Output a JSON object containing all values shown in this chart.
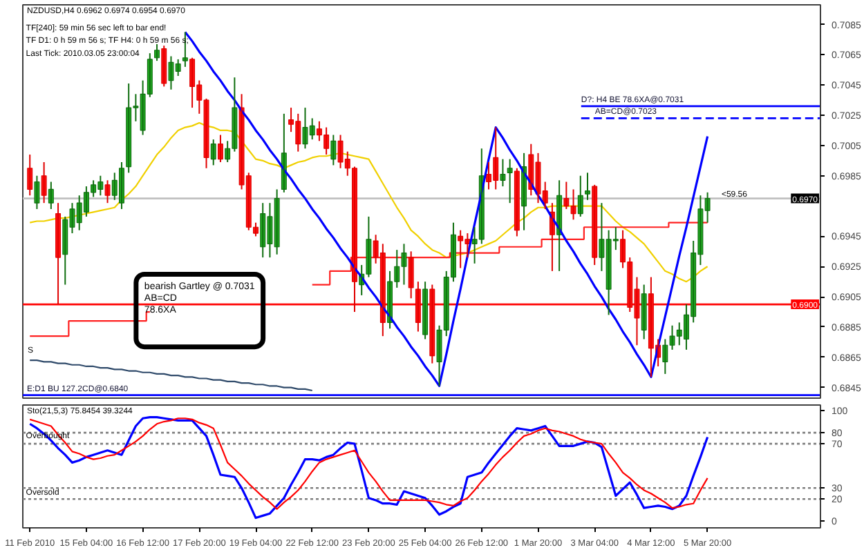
{
  "chart_data": [
    {
      "type": "candlestick",
      "title": "NZDUSD,H4  0.6962 0.6974 0.6954 0.6970",
      "annotations": [
        "TF[240]: 59 min 56 sec left to bar end!",
        "TF D1: 0 h 59 m 56 s;   TF H4: 0 h 59 m 56 s;",
        "Last Tick: 2010.03.05 23:00:04",
        "bearish Gartley @ 0.7031\nAB=CD\n78.6XA",
        "S",
        "<59.56"
      ],
      "categories": [
        null,
        null,
        null,
        null,
        null,
        null,
        null,
        null,
        null,
        null,
        null,
        null,
        null,
        null,
        null,
        null,
        null,
        null,
        null,
        null,
        null,
        null,
        null,
        null,
        null,
        null,
        null,
        null,
        null,
        null,
        null,
        null,
        null,
        null,
        null,
        null,
        null,
        null,
        null,
        null,
        null,
        null,
        null,
        null,
        null,
        null,
        null,
        null,
        null,
        null,
        null,
        null,
        null,
        null,
        null,
        null,
        null,
        null,
        null,
        null,
        null,
        null,
        null,
        null,
        null,
        null,
        null,
        null,
        null,
        null,
        null,
        null,
        null,
        null,
        null,
        null,
        null,
        null,
        null,
        null,
        null,
        null,
        null,
        null,
        null,
        null,
        null,
        null,
        null,
        null,
        null,
        null,
        null,
        null,
        null,
        null,
        null
      ],
      "ohlc": [
        [
          0.699,
          0.6999,
          0.6972,
          0.6976
        ],
        [
          0.6967,
          0.6985,
          0.6963,
          0.6981
        ],
        [
          0.6985,
          0.6994,
          0.6967,
          0.6972
        ],
        [
          0.6967,
          0.6981,
          0.6963,
          0.6976
        ],
        [
          0.696,
          0.6967,
          0.69,
          0.6931
        ],
        [
          0.6933,
          0.6958,
          0.6913,
          0.6956
        ],
        [
          0.6951,
          0.6967,
          0.6947,
          0.6963
        ],
        [
          0.6954,
          0.6972,
          0.6949,
          0.6967
        ],
        [
          0.6961,
          0.6978,
          0.6958,
          0.6974
        ],
        [
          0.6974,
          0.6982,
          0.6971,
          0.6979
        ],
        [
          0.6976,
          0.6985,
          0.6972,
          0.6981
        ],
        [
          0.6979,
          0.6982,
          0.6967,
          0.6972
        ],
        [
          0.6972,
          0.6987,
          0.6969,
          0.6982
        ],
        [
          0.6967,
          0.6994,
          0.6963,
          0.699
        ],
        [
          0.6991,
          0.7046,
          0.6987,
          0.703
        ],
        [
          0.703,
          0.7039,
          0.7021,
          0.7031
        ],
        [
          0.7015,
          0.7048,
          0.7012,
          0.7039
        ],
        [
          0.7039,
          0.7066,
          0.7037,
          0.7062
        ],
        [
          0.7063,
          0.7072,
          0.7061,
          0.7068
        ],
        [
          0.7069,
          0.7071,
          0.7044,
          0.7046
        ],
        [
          0.7048,
          0.7064,
          0.7042,
          0.706
        ],
        [
          0.7054,
          0.7062,
          0.7051,
          0.7059
        ],
        [
          0.7061,
          0.708,
          0.7057,
          0.7063
        ],
        [
          0.7062,
          0.7063,
          0.703,
          0.7044
        ],
        [
          0.7045,
          0.7048,
          0.7026,
          0.7035
        ],
        [
          0.7035,
          0.7036,
          0.699,
          0.6997
        ],
        [
          0.6996,
          0.7009,
          0.6992,
          0.7006
        ],
        [
          0.7006,
          0.7012,
          0.6994,
          0.6996
        ],
        [
          0.6996,
          0.7008,
          0.6994,
          0.7003
        ],
        [
          0.7003,
          0.705,
          0.7001,
          0.703
        ],
        [
          0.703,
          0.7039,
          0.6976,
          0.6979
        ],
        [
          0.6985,
          0.6987,
          0.6949,
          0.6951
        ],
        [
          0.6951,
          0.6954,
          0.6945,
          0.6947
        ],
        [
          0.6938,
          0.6967,
          0.6931,
          0.696
        ],
        [
          0.694,
          0.6967,
          0.6931,
          0.6958
        ],
        [
          0.6938,
          0.6976,
          0.6933,
          0.697
        ],
        [
          0.6976,
          0.7026,
          0.6974,
          0.7
        ],
        [
          0.7022,
          0.703,
          0.7014,
          0.7019
        ],
        [
          0.7021,
          0.7026,
          0.7001,
          0.7006
        ],
        [
          0.7006,
          0.703,
          0.7003,
          0.7017
        ],
        [
          0.7012,
          0.7023,
          0.7009,
          0.7018
        ],
        [
          0.7016,
          0.7021,
          0.7008,
          0.7012
        ],
        [
          0.7012,
          0.7017,
          0.6999,
          0.7003
        ],
        [
          0.6996,
          0.7012,
          0.6992,
          0.7008
        ],
        [
          0.7008,
          0.7012,
          0.699,
          0.6994
        ],
        [
          0.6996,
          0.7001,
          0.6985,
          0.699
        ],
        [
          0.699,
          0.6991,
          0.6895,
          0.6915
        ],
        [
          0.6913,
          0.6926,
          0.6906,
          0.692
        ],
        [
          0.692,
          0.6958,
          0.6918,
          0.6943
        ],
        [
          0.6942,
          0.6946,
          0.6927,
          0.6931
        ],
        [
          0.6934,
          0.694,
          0.6879,
          0.6888
        ],
        [
          0.6888,
          0.6922,
          0.6884,
          0.6915
        ],
        [
          0.6915,
          0.6936,
          0.6911,
          0.6925
        ],
        [
          0.6925,
          0.694,
          0.6913,
          0.6934
        ],
        [
          0.6931,
          0.6935,
          0.6904,
          0.6911
        ],
        [
          0.691,
          0.6915,
          0.6882,
          0.6888
        ],
        [
          0.688,
          0.6915,
          0.6877,
          0.691
        ],
        [
          0.691,
          0.6913,
          0.6861,
          0.6866
        ],
        [
          0.6862,
          0.6886,
          0.6846,
          0.6883
        ],
        [
          0.6883,
          0.6922,
          0.6879,
          0.6918
        ],
        [
          0.6918,
          0.6954,
          0.6915,
          0.6946
        ],
        [
          0.6945,
          0.6949,
          0.6924,
          0.6942
        ],
        [
          0.6943,
          0.6947,
          0.6931,
          0.694
        ],
        [
          0.694,
          0.6951,
          0.6927,
          0.6943
        ],
        [
          0.6943,
          0.7003,
          0.694,
          0.6985
        ],
        [
          0.6986,
          0.6994,
          0.6976,
          0.6981
        ],
        [
          0.6997,
          0.7017,
          0.6976,
          0.6982
        ],
        [
          0.6982,
          0.6996,
          0.6978,
          0.6986
        ],
        [
          0.6987,
          0.6996,
          0.6967,
          0.699
        ],
        [
          0.6988,
          0.699,
          0.6945,
          0.6949
        ],
        [
          0.6965,
          0.7,
          0.6949,
          0.6991
        ],
        [
          0.6999,
          0.7006,
          0.6972,
          0.6976
        ],
        [
          0.6994,
          0.7,
          0.6967,
          0.6973
        ],
        [
          0.6975,
          0.6981,
          0.6963,
          0.6967
        ],
        [
          0.6961,
          0.6967,
          0.6922,
          0.6946
        ],
        [
          0.6946,
          0.6982,
          0.6922,
          0.6972
        ],
        [
          0.697,
          0.6981,
          0.6963,
          0.6965
        ],
        [
          0.6965,
          0.6976,
          0.6956,
          0.696
        ],
        [
          0.696,
          0.6985,
          0.6958,
          0.6972
        ],
        [
          0.6973,
          0.6987,
          0.6969,
          0.6975
        ],
        [
          0.6978,
          0.6979,
          0.6926,
          0.6931
        ],
        [
          0.6931,
          0.6967,
          0.6922,
          0.6943
        ],
        [
          0.691,
          0.6949,
          0.6893,
          0.6943
        ],
        [
          0.6942,
          0.6951,
          0.6936,
          0.6943
        ],
        [
          0.6943,
          0.6949,
          0.6924,
          0.6928
        ],
        [
          0.6928,
          0.6931,
          0.6895,
          0.6898
        ],
        [
          0.691,
          0.6918,
          0.6873,
          0.6891
        ],
        [
          0.6883,
          0.6913,
          0.6877,
          0.6907
        ],
        [
          0.6907,
          0.6918,
          0.6852,
          0.6871
        ],
        [
          0.6873,
          0.6877,
          0.6859,
          0.6865
        ],
        [
          0.6862,
          0.6877,
          0.6854,
          0.6873
        ],
        [
          0.6873,
          0.6886,
          0.687,
          0.6879
        ],
        [
          0.6879,
          0.6888,
          0.6873,
          0.6883
        ],
        [
          0.6877,
          0.69,
          0.687,
          0.6893
        ],
        [
          0.6892,
          0.6942,
          0.6888,
          0.6934
        ],
        [
          0.6933,
          0.6972,
          0.6926,
          0.6963
        ],
        [
          0.6962,
          0.6974,
          0.6954,
          0.697
        ]
      ],
      "series": [
        {
          "type": "line",
          "color": "#f0d000",
          "values": [
            0.6954,
            0.6955,
            0.6955,
            0.6956,
            0.6957,
            0.6957,
            0.6958,
            0.6959,
            0.696,
            0.6961,
            0.6962,
            0.6963,
            0.6964,
            0.6969,
            0.6973,
            0.6978,
            0.6985,
            0.6992,
            0.6999,
            0.7004,
            0.701,
            0.7015,
            0.7017,
            0.7018,
            0.702,
            0.7018,
            0.7017,
            0.7015,
            0.7015,
            0.7014,
            0.7008,
            0.7002,
            0.6996,
            0.6995,
            0.6993,
            0.6992,
            0.699,
            0.6992,
            0.6994,
            0.6995,
            0.6997,
            0.6998,
            0.6998,
            0.6999,
            0.7,
            0.6999,
            0.6998,
            0.6997,
            0.6996,
            0.6988,
            0.698,
            0.6972,
            0.6964,
            0.6957,
            0.6949,
            0.6945,
            0.694,
            0.6936,
            0.6934,
            0.6931,
            0.6932,
            0.6933,
            0.6934,
            0.6936,
            0.6938,
            0.694,
            0.6942,
            0.6946,
            0.695,
            0.6954,
            0.6957,
            0.6961,
            0.6964,
            0.6964,
            0.6965,
            0.6965,
            0.6965,
            0.6965,
            0.6965,
            0.6965,
            0.6965,
            0.6965,
            0.696,
            0.6955,
            0.6951,
            0.6948,
            0.6944,
            0.694,
            0.6934,
            0.6928,
            0.6922,
            0.692,
            0.6917,
            0.6915,
            0.6918,
            0.6922,
            0.6925
          ]
        },
        {
          "type": "step",
          "color": "#ff2020",
          "values": [
            0.6879,
            0.6879,
            0.6879,
            0.6879,
            0.6879,
            0.6879,
            0.6889,
            0.6889,
            0.6889,
            0.6889,
            0.6889,
            0.6889,
            0.6889,
            0.6889,
            0.6889,
            0.6889,
            0.6889,
            0.6895,
            null,
            null,
            null,
            null,
            null,
            null,
            null,
            null,
            null,
            null,
            null,
            null,
            null,
            null,
            null,
            null,
            null,
            null,
            null,
            null,
            null,
            null,
            0.6913,
            0.6913,
            0.6913,
            0.6922,
            0.6922,
            0.6922,
            0.6931,
            0.6931,
            0.6931,
            0.6931,
            0.6931,
            0.6931,
            0.6931,
            0.6931,
            0.6931,
            0.6931,
            0.6931,
            0.6931,
            0.6931,
            0.6931,
            0.6934,
            0.6934,
            0.6934,
            0.6934,
            0.6934,
            0.6934,
            0.6934,
            0.6938,
            0.6938,
            0.6938,
            0.6938,
            0.6938,
            0.6938,
            0.6943,
            0.6943,
            0.6943,
            0.6943,
            0.6943,
            0.6943,
            0.6951,
            0.6951,
            0.6951,
            0.6951,
            0.6951,
            0.6951,
            0.6951,
            0.6951,
            0.6951,
            0.6951,
            0.6951,
            0.6951,
            0.6954,
            0.6954,
            0.6954,
            0.6954,
            0.6954,
            0.6954
          ]
        },
        {
          "type": "line",
          "color": "#2f4a6a",
          "values": [
            0.6863,
            0.6863,
            0.6862,
            0.6862,
            0.6861,
            0.6861,
            0.686,
            0.686,
            0.6859,
            0.6859,
            0.6858,
            0.6858,
            0.6857,
            0.6857,
            0.6856,
            0.6856,
            0.6855,
            0.6855,
            0.6854,
            0.6854,
            0.6853,
            0.6853,
            0.6852,
            0.6852,
            0.6851,
            0.6851,
            0.685,
            0.685,
            0.6849,
            0.6849,
            0.6848,
            0.6848,
            0.6847,
            0.6847,
            0.6846,
            0.6846,
            0.6845,
            0.6845,
            0.6844,
            0.6844,
            0.6843,
            null,
            null,
            null,
            null,
            null,
            null,
            null,
            null,
            null,
            null,
            null,
            null,
            null,
            null,
            null,
            null,
            null,
            null,
            null,
            null,
            null,
            null,
            null,
            null,
            null,
            null,
            null,
            null,
            null,
            null,
            null,
            null,
            null,
            null,
            null,
            null,
            null,
            null,
            null,
            null,
            null,
            null,
            null,
            null,
            null,
            null,
            null,
            null,
            null,
            null,
            null,
            null,
            null,
            null,
            null,
            null
          ]
        },
        {
          "type": "line",
          "color": "#0000ff",
          "values": [
            null,
            null,
            null,
            null,
            null,
            null,
            null,
            null,
            null,
            null,
            null,
            null,
            null,
            null,
            null,
            null,
            null,
            null,
            null,
            null,
            null,
            null,
            0.708,
            0.7074,
            0.7067,
            0.7061,
            0.7054,
            0.7048,
            0.7041,
            0.7035,
            0.7028,
            0.7022,
            0.7015,
            0.7009,
            0.7002,
            0.6996,
            0.6989,
            0.6983,
            0.6976,
            0.697,
            0.6963,
            0.6957,
            0.695,
            0.6944,
            0.6937,
            0.6931,
            0.6924,
            0.6918,
            0.6911,
            0.6905,
            0.6898,
            0.6892,
            0.6885,
            0.6879,
            0.6872,
            0.6866,
            0.6859,
            0.6853,
            0.6846,
            0.6867,
            0.6889,
            0.691,
            0.6932,
            0.6953,
            0.6974,
            0.6996,
            0.7017,
            0.701,
            0.7002,
            0.6995,
            0.6987,
            0.698,
            0.6972,
            0.6965,
            0.6957,
            0.695,
            0.6942,
            0.6935,
            0.6927,
            0.692,
            0.6912,
            0.6905,
            0.6897,
            0.689,
            0.6882,
            0.6875,
            0.6867,
            0.686,
            0.6852,
            0.6872,
            0.6892,
            0.6912,
            0.6932,
            0.6951,
            0.6971,
            0.6991,
            0.7011
          ]
        }
      ],
      "ref_lines": [
        {
          "axis": "y",
          "value": 0.7031,
          "label": "D?: H4 BE 78.6XA@0.7031",
          "color": "#0000ff",
          "line_style": "solid"
        },
        {
          "axis": "y",
          "value": 0.7023,
          "label": "AB=CD@0.7023",
          "color": "#0000ff",
          "line_style": "dashed"
        },
        {
          "axis": "y",
          "value": 0.697,
          "label": "0.6970",
          "color": "#c0c0c0",
          "line_style": "solid"
        },
        {
          "axis": "y",
          "value": 0.69,
          "label": "0.6900",
          "color": "#ff0000",
          "line_style": "solid"
        },
        {
          "axis": "y",
          "value": 0.684,
          "label": "E:D1 BU 127.2CD@0.6840",
          "color": "#0000ff",
          "line_style": "solid"
        }
      ],
      "ylim": [
        0.6838,
        0.7098
      ],
      "yticks": [
        0.7085,
        0.7065,
        0.7045,
        0.7025,
        0.7005,
        0.6985,
        0.6945,
        0.6925,
        0.6905,
        0.6885,
        0.6865,
        0.6845
      ],
      "tick_labels": "y"
    },
    {
      "type": "line",
      "title": "Sto(21,5,3) 75.8454 39.3244",
      "annotations": [
        "Overbought",
        "Oversold"
      ],
      "categories": [
        "11 Feb 2010",
        null,
        null,
        null,
        null,
        null,
        null,
        null,
        "15 Feb 04:00",
        null,
        null,
        null,
        null,
        null,
        null,
        null,
        "16 Feb 12:00",
        null,
        null,
        null,
        null,
        null,
        null,
        null,
        "17 Feb 20:00",
        null,
        null,
        null,
        null,
        null,
        null,
        null,
        "19 Feb 04:00",
        null,
        null,
        null,
        null,
        null,
        null,
        null,
        "22 Feb 12:00",
        null,
        null,
        null,
        null,
        null,
        null,
        null,
        "23 Feb 20:00",
        null,
        null,
        null,
        null,
        null,
        null,
        null,
        "25 Feb 04:00",
        null,
        null,
        null,
        null,
        null,
        null,
        null,
        "26 Feb 12:00",
        null,
        null,
        null,
        null,
        null,
        null,
        null,
        "1 Mar 20:00",
        null,
        null,
        null,
        null,
        null,
        null,
        null,
        "3 Mar 04:00",
        null,
        null,
        null,
        null,
        null,
        null,
        null,
        "4 Mar 12:00",
        null,
        null,
        null,
        null,
        null,
        null,
        null,
        "5 Mar 20:00"
      ],
      "series": [
        {
          "color": "#0000ff",
          "values": [
            88,
            84,
            79,
            73,
            66,
            60,
            53,
            55,
            58,
            60,
            62,
            64,
            62,
            60,
            73,
            86,
            93,
            94,
            94,
            93,
            92,
            91,
            91,
            91,
            84,
            77,
            60,
            42,
            41,
            40,
            30,
            17,
            3,
            5,
            7,
            14,
            21,
            33,
            44,
            56,
            56,
            55,
            58,
            60,
            66,
            71,
            70,
            46,
            21,
            19,
            16,
            16,
            15,
            27,
            25,
            23,
            21,
            14,
            6,
            9,
            13,
            16,
            40,
            42,
            44,
            53,
            61,
            69,
            77,
            84,
            83,
            82,
            84,
            86,
            77,
            68,
            68,
            68,
            70,
            72,
            71,
            67,
            45,
            23,
            29,
            35,
            24,
            12,
            13,
            14,
            13,
            11,
            14,
            23,
            41,
            58,
            76
          ]
        },
        {
          "color": "#ff0000",
          "values": [
            92,
            90,
            88,
            86,
            78,
            71,
            63,
            61,
            58,
            56,
            57,
            59,
            60,
            64,
            68,
            72,
            77,
            83,
            88,
            90,
            91,
            93,
            93,
            92,
            89,
            87,
            84,
            69,
            53,
            47,
            41,
            34,
            28,
            22,
            17,
            11,
            17,
            22,
            28,
            36,
            45,
            53,
            56,
            58,
            60,
            62,
            64,
            54,
            44,
            36,
            27,
            19,
            19,
            19,
            19,
            19,
            19,
            18,
            17,
            15,
            14,
            18,
            21,
            28,
            36,
            43,
            51,
            58,
            64,
            71,
            77,
            79,
            82,
            84,
            82,
            81,
            79,
            77,
            74,
            72,
            71,
            70,
            61,
            53,
            44,
            39,
            33,
            28,
            25,
            21,
            17,
            12,
            13,
            15,
            16,
            28,
            39
          ]
        }
      ],
      "ref_lines": [
        {
          "axis": "y",
          "value": 80,
          "color": "#808080",
          "line_style": "dotted"
        },
        {
          "axis": "y",
          "value": 70,
          "color": "#808080",
          "line_style": "dotted"
        },
        {
          "axis": "y",
          "value": 30,
          "color": "#808080",
          "line_style": "dotted"
        },
        {
          "axis": "y",
          "value": 20,
          "color": "#808080",
          "line_style": "dotted"
        }
      ],
      "ylim": [
        -6,
        105
      ],
      "yticks": [
        0,
        20,
        30,
        70,
        80,
        100
      ]
    }
  ]
}
